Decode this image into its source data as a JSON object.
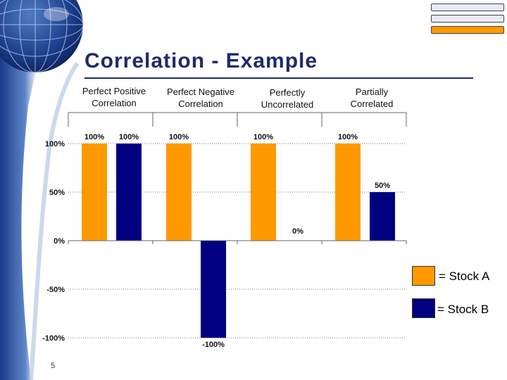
{
  "title": "Correlation - Example",
  "slide_number": "5",
  "colors": {
    "stock_a": "#ff9900",
    "stock_b": "#000080",
    "title": "#1f2a6b"
  },
  "legend": {
    "stock_a_label": "= Stock A",
    "stock_b_label": "= Stock B"
  },
  "chart_data": {
    "type": "bar",
    "categories": [
      [
        "Perfect Positive",
        "Correlation"
      ],
      [
        "Perfect Negative",
        "Correlation"
      ],
      [
        "Perfectly",
        "Uncorrelated"
      ],
      [
        "Partially",
        "Correlated"
      ]
    ],
    "series": [
      {
        "name": "Stock A",
        "values": [
          100,
          100,
          100,
          100
        ],
        "labels": [
          "100%",
          "100%",
          "100%",
          "100%"
        ]
      },
      {
        "name": "Stock B",
        "values": [
          100,
          -100,
          0,
          50
        ],
        "labels": [
          "100%",
          "-100%",
          "0%",
          "50%"
        ]
      }
    ],
    "ylim": [
      -100,
      100
    ],
    "yticks": [
      100,
      50,
      0,
      -50,
      -100
    ],
    "ytick_labels": [
      "100%",
      "50%",
      "0%",
      "-50%",
      "-100%"
    ],
    "grid": "dotted horizontal",
    "legend_position": "right"
  }
}
